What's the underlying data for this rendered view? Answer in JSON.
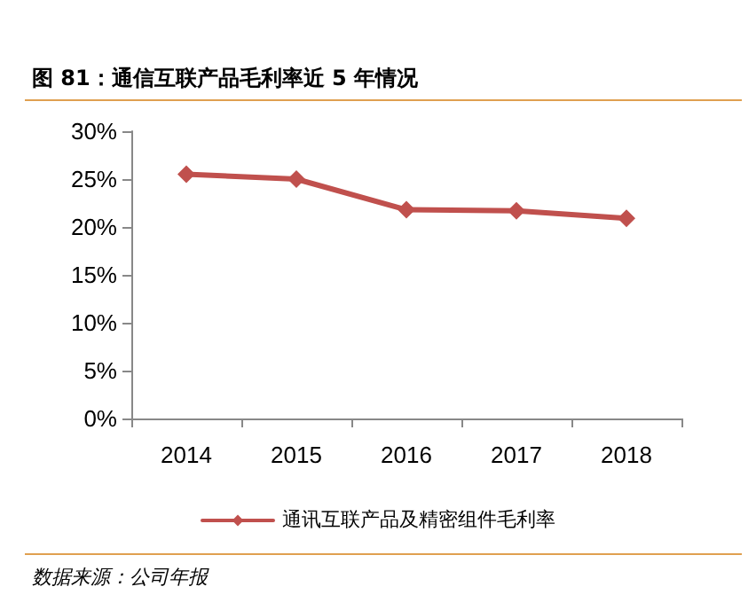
{
  "chart_data": {
    "type": "line",
    "title": "图 81：通信互联产品毛利率近 5 年情况",
    "categories": [
      "2014",
      "2015",
      "2016",
      "2017",
      "2018"
    ],
    "series": [
      {
        "name": "通讯互联产品及精密组件毛利率",
        "color": "#c0504d",
        "values": [
          25.5,
          25.0,
          21.8,
          21.7,
          20.9
        ]
      }
    ],
    "ylim": [
      0,
      30
    ],
    "yticks": [
      {
        "value": 0,
        "label": "0%"
      },
      {
        "value": 5,
        "label": "5%"
      },
      {
        "value": 10,
        "label": "10%"
      },
      {
        "value": 15,
        "label": "15%"
      },
      {
        "value": 20,
        "label": "20%"
      },
      {
        "value": 25,
        "label": "25%"
      },
      {
        "value": 30,
        "label": "30%"
      }
    ],
    "grid": false,
    "legend": "bottom",
    "marker": "diamond",
    "line_style": "solid",
    "annotations": [
      "数据来源：公司年报"
    ]
  }
}
